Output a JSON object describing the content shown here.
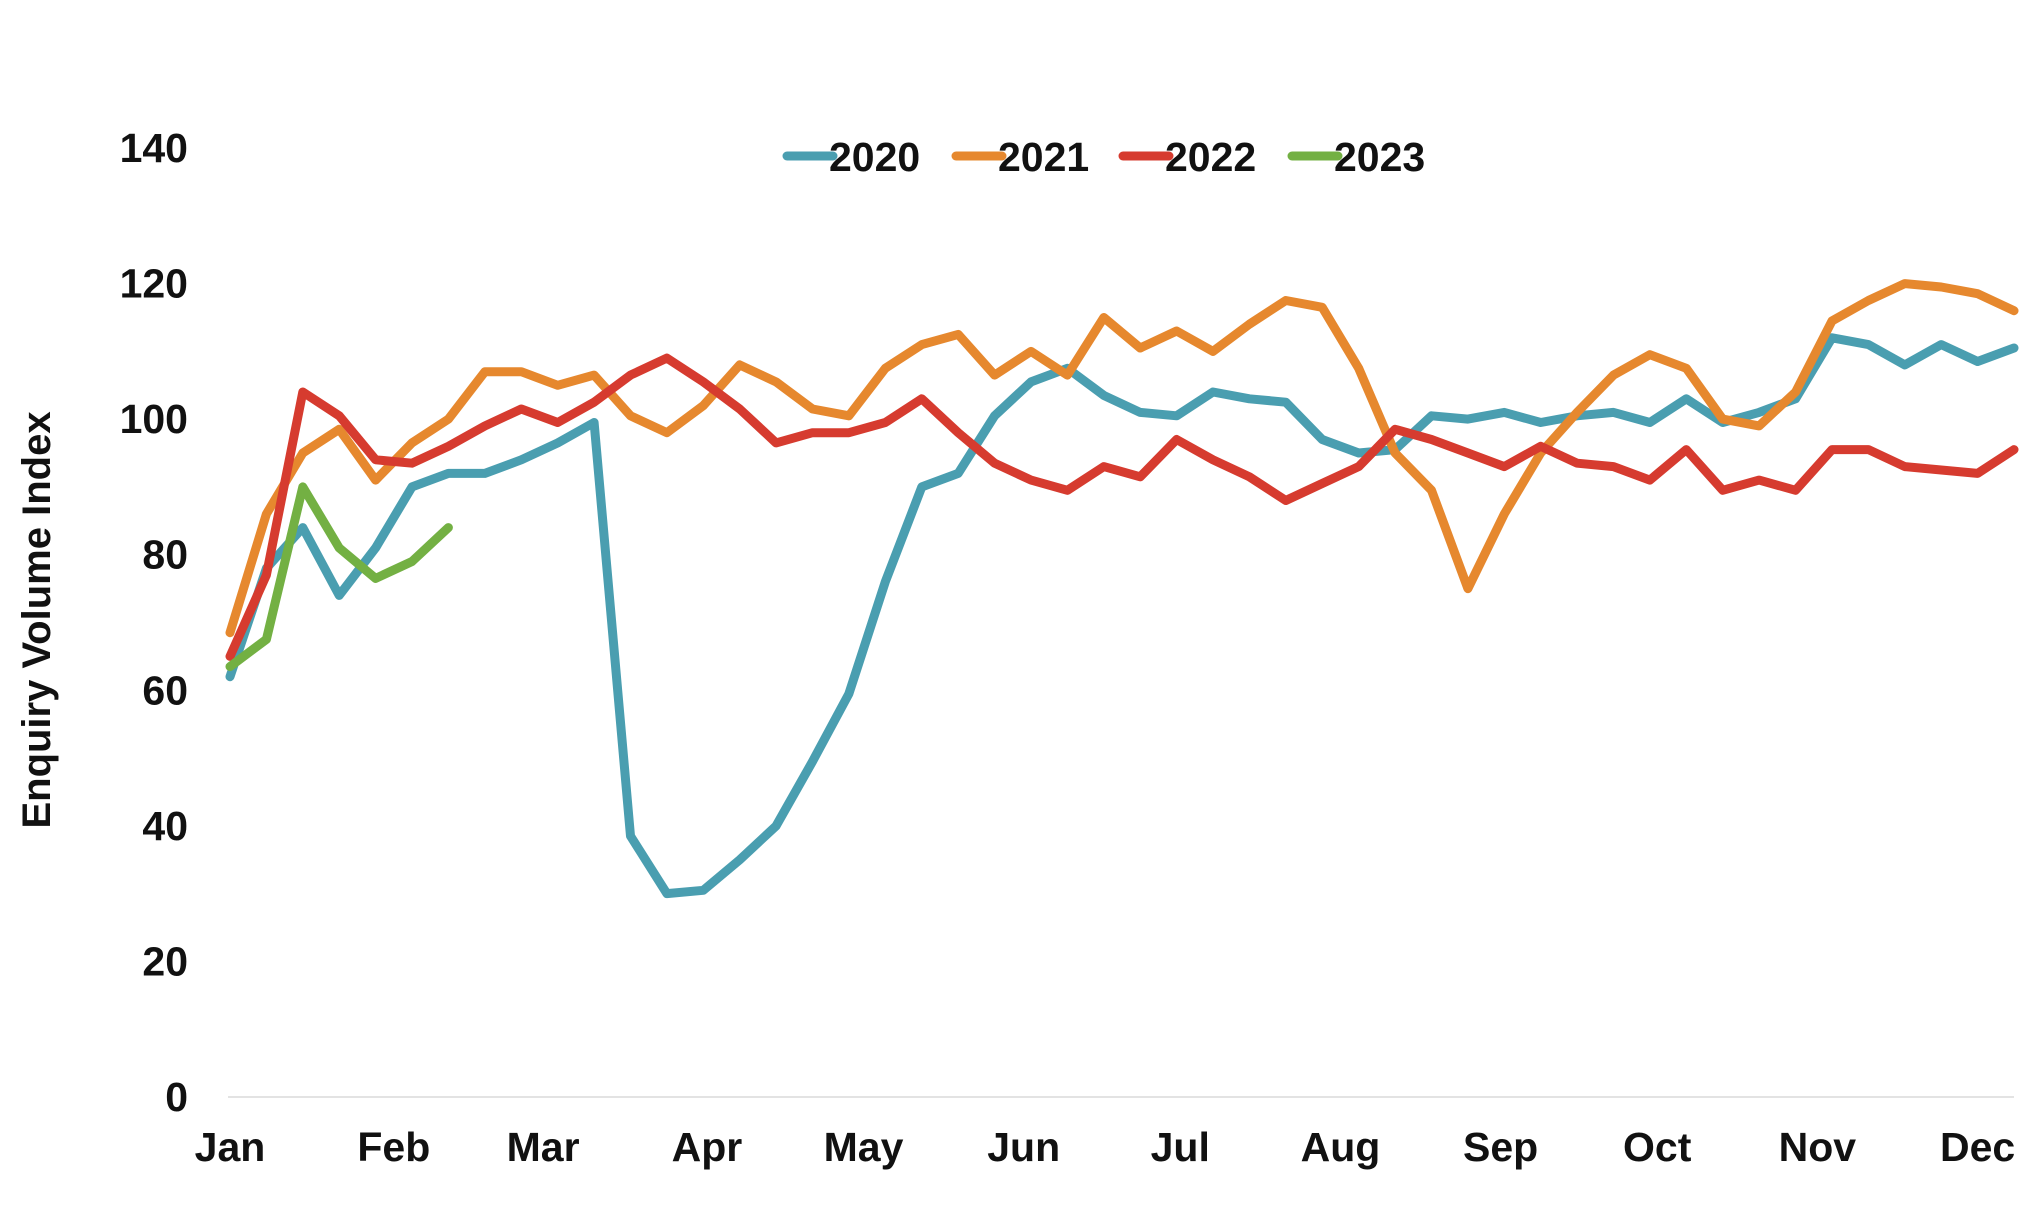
{
  "chart_data": {
    "type": "line",
    "ylabel": "Enquiry Volume Index",
    "ylim": [
      0,
      140
    ],
    "yticks": [
      0,
      20,
      40,
      60,
      80,
      100,
      120,
      140
    ],
    "month_labels": [
      "Jan",
      "Feb",
      "Mar",
      "Apr",
      "May",
      "Jun",
      "Jul",
      "Aug",
      "Sep",
      "Oct",
      "Nov",
      "Dec"
    ],
    "x_unit": "week of year",
    "xlim": [
      1,
      50
    ],
    "month_week_positions": [
      1,
      5.5,
      9.6,
      14.1,
      18.4,
      22.8,
      27.1,
      31.5,
      35.9,
      40.2,
      44.6,
      49
    ],
    "grid": false,
    "legend_position": "top-center",
    "series": [
      {
        "name": "2020",
        "color": "#4a9eb0",
        "x": [
          1,
          2,
          3,
          4,
          5,
          6,
          7,
          8,
          9,
          10,
          11,
          12,
          13,
          14,
          15,
          16,
          17,
          18,
          19,
          20,
          21,
          22,
          23,
          24,
          25,
          26,
          27,
          28,
          29,
          30,
          31,
          32,
          33,
          34,
          35,
          36,
          37,
          38,
          39,
          40,
          41,
          42,
          43,
          44,
          45,
          46,
          47,
          48,
          49,
          50
        ],
        "values": [
          62,
          78,
          84,
          74,
          81,
          90,
          92,
          92,
          94,
          96.5,
          99.5,
          38.5,
          30,
          30.5,
          35,
          40,
          49.5,
          59.5,
          76,
          90,
          92,
          100.5,
          105.5,
          107.5,
          103.5,
          101,
          100.5,
          104,
          103,
          102.5,
          97,
          95,
          95.5,
          100.5,
          100,
          101,
          99.5,
          100.5,
          101,
          99.5,
          103,
          99.5,
          101,
          103,
          112,
          111,
          108,
          111,
          108.5,
          110.5
        ]
      },
      {
        "name": "2021",
        "color": "#e6882e",
        "x": [
          1,
          2,
          3,
          4,
          5,
          6,
          7,
          8,
          9,
          10,
          11,
          12,
          13,
          14,
          15,
          16,
          17,
          18,
          19,
          20,
          21,
          22,
          23,
          24,
          25,
          26,
          27,
          28,
          29,
          30,
          31,
          32,
          33,
          34,
          35,
          36,
          37,
          38,
          39,
          40,
          41,
          42,
          43,
          44,
          45,
          46,
          47,
          48,
          49,
          50
        ],
        "values": [
          68.5,
          86,
          95,
          98.5,
          91,
          96.5,
          100,
          107,
          107,
          105,
          106.5,
          100.5,
          98,
          102,
          108,
          105.5,
          101.5,
          100.5,
          107.5,
          111,
          112.5,
          106.5,
          110,
          106.5,
          115,
          110.5,
          113,
          110,
          114,
          117.5,
          116.5,
          107.5,
          95,
          89.5,
          75,
          86,
          95,
          101,
          106.5,
          109.5,
          107.5,
          100,
          99,
          104,
          114.5,
          117.5,
          120,
          119.5,
          118.5,
          116
        ]
      },
      {
        "name": "2022",
        "color": "#d63b2f",
        "x": [
          1,
          2,
          3,
          4,
          5,
          6,
          7,
          8,
          9,
          10,
          11,
          12,
          13,
          14,
          15,
          16,
          17,
          18,
          19,
          20,
          21,
          22,
          23,
          24,
          25,
          26,
          27,
          28,
          29,
          30,
          31,
          32,
          33,
          34,
          35,
          36,
          37,
          38,
          39,
          40,
          41,
          42,
          43,
          44,
          45,
          46,
          47,
          48,
          49,
          50
        ],
        "values": [
          65,
          77,
          104,
          100.5,
          94,
          93.5,
          96,
          99,
          101.5,
          99.5,
          102.5,
          106.5,
          109,
          105.5,
          101.5,
          96.5,
          98,
          98,
          99.5,
          103,
          98,
          93.5,
          91,
          89.5,
          93,
          91.5,
          97,
          94,
          91.5,
          88,
          90.5,
          93,
          98.5,
          97,
          95,
          93,
          96,
          93.5,
          93,
          91,
          95.5,
          89.5,
          91,
          89.5,
          95.5,
          95.5,
          93,
          92.5,
          92,
          95.5
        ]
      },
      {
        "name": "2023",
        "color": "#73b043",
        "x": [
          1,
          2,
          3,
          4,
          5,
          6,
          7
        ],
        "values": [
          63.5,
          67.5,
          90,
          81,
          76.5,
          79,
          84
        ]
      }
    ]
  }
}
